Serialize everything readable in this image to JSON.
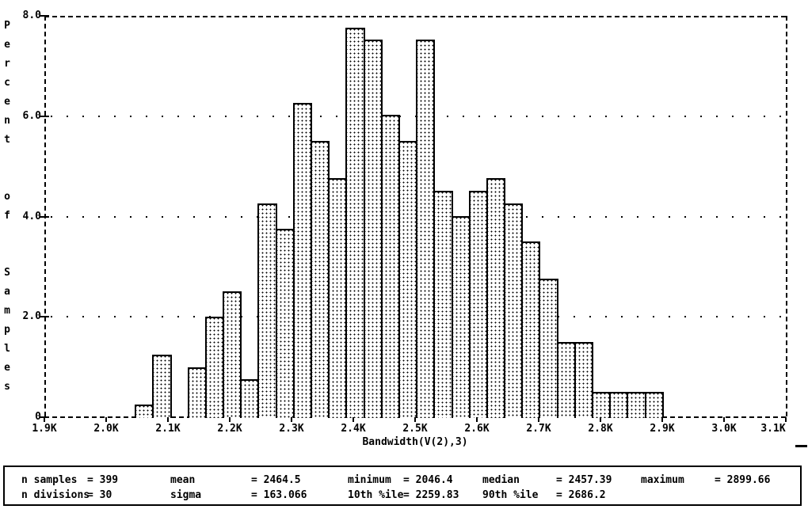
{
  "window": {
    "background_color": "#ffffff",
    "foreground_color": "#000000"
  },
  "chart_data": {
    "type": "bar",
    "subtype": "histogram",
    "title": "",
    "xlabel": "Bandwidth(V(2),3)",
    "ylabel": "Percent of Samples",
    "xlim": [
      1900,
      3100
    ],
    "ylim": [
      0,
      8
    ],
    "grid": "horizontal dotted lines at 2.0, 4.0, 6.0; dashed plot frame",
    "legend_position": "none",
    "x_ticks": [
      {
        "label": "1.9K",
        "value": 1900
      },
      {
        "label": "2.0K",
        "value": 2000
      },
      {
        "label": "2.1K",
        "value": 2100
      },
      {
        "label": "2.2K",
        "value": 2200
      },
      {
        "label": "2.3K",
        "value": 2300
      },
      {
        "label": "2.4K",
        "value": 2400
      },
      {
        "label": "2.5K",
        "value": 2500
      },
      {
        "label": "2.6K",
        "value": 2600
      },
      {
        "label": "2.7K",
        "value": 2700
      },
      {
        "label": "2.8K",
        "value": 2800
      },
      {
        "label": "2.9K",
        "value": 2900
      },
      {
        "label": "3.0K",
        "value": 3000
      },
      {
        "label": "3.1K",
        "value": 3100
      }
    ],
    "y_ticks": [
      {
        "label": "8.0",
        "value": 8
      },
      {
        "label": "6.0",
        "value": 6
      },
      {
        "label": "4.0",
        "value": 4
      },
      {
        "label": "2.0",
        "value": 2
      },
      {
        "label": "0",
        "value": 0
      }
    ],
    "histogram": {
      "bin_start": 2046.4,
      "bin_width": 28.442,
      "n_bins": 30,
      "counts": [
        1,
        5,
        0,
        4,
        8,
        10,
        3,
        17,
        15,
        25,
        22,
        19,
        31,
        30,
        24,
        22,
        30,
        18,
        16,
        18,
        19,
        17,
        14,
        11,
        6,
        6,
        2,
        2,
        2,
        2
      ],
      "percents": [
        0.25,
        1.25,
        0,
        1.0,
        2.01,
        2.51,
        0.75,
        4.26,
        3.76,
        6.27,
        5.51,
        4.76,
        7.77,
        7.52,
        6.02,
        5.51,
        7.52,
        4.51,
        4.01,
        4.51,
        4.76,
        4.26,
        3.51,
        2.76,
        1.5,
        1.5,
        0.5,
        0.5,
        0.5,
        0.5
      ]
    }
  },
  "stats_panel": {
    "rows": [
      [
        {
          "label": "n samples",
          "value": "= 399"
        },
        {
          "label": "mean",
          "value": "= 2464.5"
        },
        {
          "label": "minimum",
          "value": "= 2046.4"
        },
        {
          "label": "median",
          "value": "= 2457.39"
        },
        {
          "label": "maximum",
          "value": "= 2899.66"
        }
      ],
      [
        {
          "label": "n divisions",
          "value": "= 30"
        },
        {
          "label": "sigma",
          "value": "= 163.066"
        },
        {
          "label": "10th %ile",
          "value": "= 2259.83"
        },
        {
          "label": "90th %ile",
          "value": "= 2686.2"
        }
      ]
    ]
  },
  "cursor_mark": "_"
}
